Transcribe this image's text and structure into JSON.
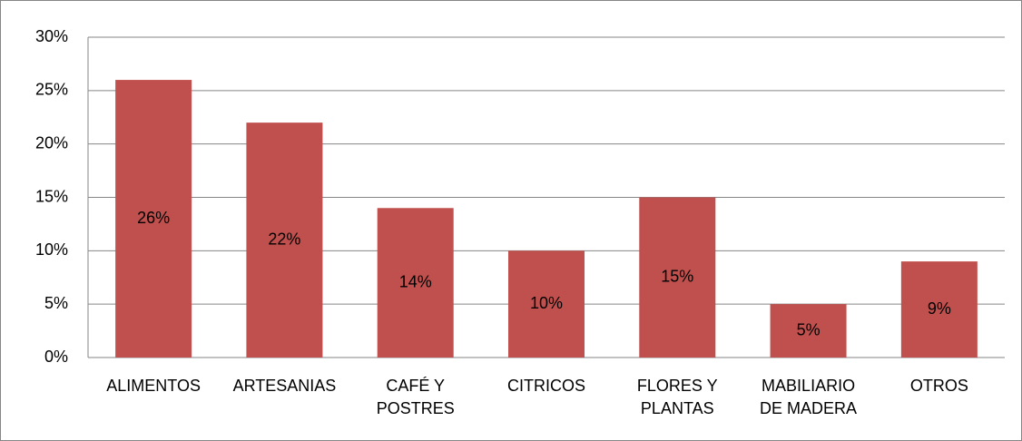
{
  "chart_data": {
    "type": "bar",
    "categories": [
      "ALIMENTOS",
      "ARTESANIAS",
      "CAFÉ Y POSTRES",
      "CITRICOS",
      "FLORES Y PLANTAS",
      "MABILIARIO DE MADERA",
      "OTROS"
    ],
    "values": [
      26,
      22,
      14,
      10,
      15,
      5,
      9
    ],
    "value_labels": [
      "26%",
      "22%",
      "14%",
      "10%",
      "15%",
      "5%",
      "9%"
    ],
    "color": "#c0504d",
    "ylim": [
      0,
      30
    ],
    "yticks": [
      {
        "value": 0,
        "label": "0%"
      },
      {
        "value": 5,
        "label": "5%"
      },
      {
        "value": 10,
        "label": "10%"
      },
      {
        "value": 15,
        "label": "15%"
      },
      {
        "value": 20,
        "label": "20%"
      },
      {
        "value": 25,
        "label": "25%"
      },
      {
        "value": 30,
        "label": "30%"
      }
    ],
    "grid": true
  }
}
